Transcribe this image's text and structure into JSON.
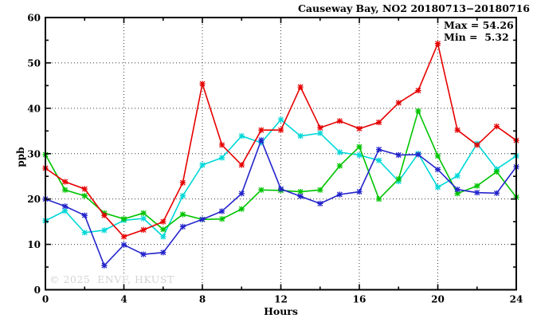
{
  "header": {
    "title": "Causeway Bay, NO2 20180713−20180716"
  },
  "stats": {
    "max_text": "Max = 54.26",
    "min_text": "Min =  5.32"
  },
  "watermark": "© 2025  ENVF, HKUST",
  "axis": {
    "x_title": "Hours",
    "y_title": "ppb"
  },
  "chart_data": {
    "type": "line",
    "title": "Causeway Bay, NO2 20180713−20180716",
    "xlabel": "Hours",
    "ylabel": "ppb",
    "xlim": [
      0,
      24
    ],
    "ylim": [
      0,
      60
    ],
    "x_major_ticks": [
      0,
      4,
      8,
      12,
      16,
      20,
      24
    ],
    "x_minor_ticks": [
      2,
      6,
      10,
      14,
      18,
      22
    ],
    "y_major_ticks": [
      0,
      10,
      20,
      30,
      40,
      50,
      60
    ],
    "y_minor_ticks": [
      5,
      15,
      25,
      35,
      45,
      55
    ],
    "grid": true,
    "legend_position": "none",
    "marker": "star",
    "annotations": {
      "max": 54.26,
      "min": 5.32
    },
    "x": [
      0,
      1,
      2,
      3,
      4,
      5,
      6,
      7,
      8,
      9,
      10,
      11,
      12,
      13,
      14,
      15,
      16,
      17,
      18,
      19,
      20,
      21,
      22,
      23,
      24
    ],
    "series": [
      {
        "name": "cyan-series",
        "color": "#00d8d8",
        "values": [
          15.2,
          17.4,
          12.6,
          13.1,
          15.3,
          15.7,
          11.7,
          20.7,
          27.5,
          29.1,
          33.9,
          32.4,
          37.5,
          33.9,
          34.5,
          30.3,
          29.7,
          28.5,
          23.9,
          30.0,
          22.6,
          25.1,
          32.2,
          26.6,
          29.5
        ]
      },
      {
        "name": "green-series",
        "color": "#00c400",
        "values": [
          29.8,
          22.0,
          20.7,
          16.9,
          15.6,
          16.9,
          13.3,
          16.6,
          15.5,
          15.6,
          17.8,
          22.0,
          21.9,
          21.6,
          22.0,
          27.3,
          31.5,
          20.0,
          24.4,
          39.4,
          29.5,
          21.2,
          22.9,
          26.0,
          20.4
        ]
      },
      {
        "name": "blue-series",
        "color": "#2424cc",
        "values": [
          20.0,
          18.4,
          16.4,
          5.32,
          9.9,
          7.8,
          8.2,
          13.9,
          15.5,
          17.3,
          21.2,
          33.0,
          22.2,
          20.6,
          19.0,
          21.0,
          21.6,
          30.9,
          29.7,
          29.8,
          26.5,
          22.1,
          21.4,
          21.3,
          27.1
        ]
      },
      {
        "name": "red-series",
        "color": "#e60000",
        "values": [
          26.8,
          23.8,
          22.2,
          16.4,
          11.7,
          13.2,
          15.0,
          23.6,
          45.4,
          31.9,
          27.5,
          35.2,
          35.2,
          44.7,
          35.7,
          37.2,
          35.5,
          36.9,
          41.2,
          43.9,
          54.26,
          35.2,
          31.9,
          36.0,
          32.9
        ]
      }
    ]
  }
}
